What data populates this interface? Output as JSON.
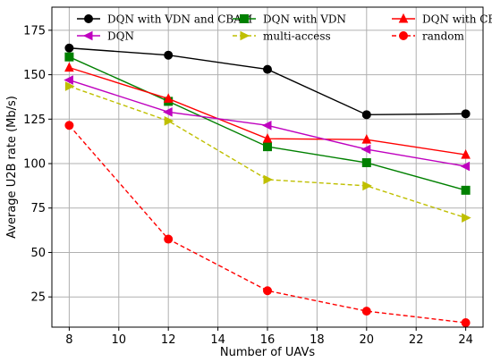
{
  "chart_data": {
    "type": "line",
    "xlabel": "Number of UAVs",
    "ylabel": "Average U2B rate (Mb/s)",
    "x": [
      8,
      12,
      16,
      20,
      24
    ],
    "xlim": [
      7.3,
      24.7
    ],
    "ylim": [
      8,
      188
    ],
    "x_ticks": [
      8,
      10,
      12,
      14,
      16,
      18,
      20,
      22,
      24
    ],
    "y_ticks": [
      25,
      50,
      75,
      100,
      125,
      150,
      175
    ],
    "grid": true,
    "legend_position": "top",
    "series": [
      {
        "name": "DQN with VDN and CBAM",
        "color": "#000000",
        "marker": "circle",
        "dash": "solid",
        "values": [
          165,
          161,
          153,
          127.5,
          128
        ]
      },
      {
        "name": "DQN with VDN",
        "color": "#008000",
        "marker": "square",
        "dash": "solid",
        "values": [
          160,
          135,
          109.5,
          100.5,
          85
        ]
      },
      {
        "name": "DQN with CBAM",
        "color": "#ff0000",
        "marker": "triangle-up",
        "dash": "solid",
        "values": [
          154,
          136.5,
          114,
          113.5,
          105
        ]
      },
      {
        "name": "DQN",
        "color": "#bf00bf",
        "marker": "triangle-left",
        "dash": "solid",
        "values": [
          147,
          129,
          121.5,
          108,
          98.5
        ]
      },
      {
        "name": "multi-access",
        "color": "#bfbf00",
        "marker": "triangle-right",
        "dash": "dashed",
        "values": [
          143.5,
          124,
          91,
          87.5,
          69.5
        ]
      },
      {
        "name": "random",
        "color": "#ff0000",
        "marker": "circle",
        "dash": "dashed",
        "values": [
          121.5,
          57.5,
          28.5,
          17,
          10.5
        ]
      }
    ]
  }
}
